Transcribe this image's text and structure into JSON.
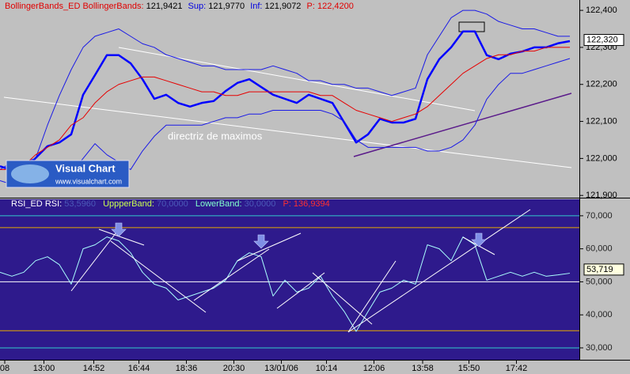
{
  "chart_data": [
    {
      "type": "line",
      "header": [
        "BollingerBands_ED",
        "BollingerBands:",
        "121,9421",
        "Sup:",
        "121,9770",
        "Inf:",
        "121,9072",
        "P:",
        "122,4200"
      ],
      "annotation": "directriz de maximos",
      "logo": [
        "Visual Chart",
        "www.visualchart.com"
      ],
      "xlim": [
        0,
        48.8
      ],
      "ylim": [
        121.894,
        122.428
      ],
      "yticks": [
        {
          "value": 121.9,
          "label": "121,900"
        },
        {
          "value": 122.0,
          "label": "122,000"
        },
        {
          "value": 122.1,
          "label": "122,100"
        },
        {
          "value": 122.2,
          "label": "122,200"
        },
        {
          "value": 122.3,
          "label": "122,300"
        },
        {
          "value": 122.4,
          "label": "122,400"
        }
      ],
      "last_value": 122.32,
      "last_label": "122,320",
      "series": [
        {
          "color": "#0000ff",
          "values": [
            121.979,
            121.968,
            121.968,
            122.001,
            122.033,
            122.043,
            122.065,
            122.172,
            122.225,
            122.279,
            122.279,
            122.257,
            122.214,
            122.161,
            122.172,
            122.15,
            122.14,
            122.15,
            122.155,
            122.182,
            122.204,
            122.214,
            122.193,
            122.172,
            122.161,
            122.15,
            122.172,
            122.161,
            122.15,
            122.097,
            122.043,
            122.065,
            122.107,
            122.097,
            122.097,
            122.107,
            122.214,
            122.268,
            122.3,
            122.343,
            122.343,
            122.279,
            122.268,
            122.283,
            122.289,
            122.3,
            122.3,
            122.311,
            122.317
          ]
        },
        {
          "color": "#1a1ae6",
          "values": [
            121.97,
            121.99,
            121.99,
            122.0,
            122.09,
            122.17,
            122.24,
            122.3,
            122.33,
            122.34,
            122.35,
            122.33,
            122.31,
            122.3,
            122.28,
            122.27,
            122.26,
            122.25,
            122.25,
            122.24,
            122.24,
            122.24,
            122.24,
            122.25,
            122.24,
            122.23,
            122.21,
            122.21,
            122.2,
            122.2,
            122.19,
            122.19,
            122.18,
            122.17,
            122.18,
            122.19,
            122.28,
            122.33,
            122.38,
            122.4,
            122.4,
            122.39,
            122.37,
            122.36,
            122.35,
            122.35,
            122.34,
            122.33,
            122.33
          ]
        },
        {
          "color": "#1a1ae6",
          "values": [
            121.94,
            121.93,
            121.93,
            121.94,
            121.94,
            121.95,
            121.96,
            122.0,
            122.04,
            122.01,
            121.99,
            121.97,
            122.02,
            122.06,
            122.09,
            122.09,
            122.09,
            122.09,
            122.1,
            122.11,
            122.11,
            122.12,
            122.12,
            122.13,
            122.13,
            122.13,
            122.13,
            122.13,
            122.12,
            122.1,
            122.05,
            122.03,
            122.03,
            122.03,
            122.03,
            122.03,
            122.02,
            122.02,
            122.03,
            122.05,
            122.09,
            122.16,
            122.2,
            122.23,
            122.23,
            122.24,
            122.25,
            122.26,
            122.27
          ]
        },
        {
          "color": "#e60000",
          "values": [
            121.97,
            121.97,
            121.98,
            122.01,
            122.03,
            122.05,
            122.09,
            122.11,
            122.15,
            122.18,
            122.2,
            122.21,
            122.22,
            122.22,
            122.21,
            122.2,
            122.19,
            122.18,
            122.18,
            122.17,
            122.17,
            122.18,
            122.18,
            122.18,
            122.18,
            122.18,
            122.18,
            122.17,
            122.17,
            122.15,
            122.13,
            122.12,
            122.11,
            122.1,
            122.11,
            122.12,
            122.14,
            122.17,
            122.2,
            122.23,
            122.25,
            122.27,
            122.28,
            122.28,
            122.29,
            122.29,
            122.3,
            122.3,
            122.3
          ]
        }
      ]
    },
    {
      "type": "line",
      "header": [
        "RSI_ED",
        "RSI:",
        "53,5960",
        "UppperBand:",
        "70,0000",
        "LowerBand:",
        "30,0000",
        "P:",
        "136,9394"
      ],
      "xlim": [
        0,
        48.8
      ],
      "ylim": [
        26.4,
        75
      ],
      "yticks": [
        {
          "value": 30,
          "label": "30,000"
        },
        {
          "value": 40,
          "label": "40,000"
        },
        {
          "value": 50,
          "label": "50,000"
        },
        {
          "value": 60,
          "label": "60,000"
        },
        {
          "value": 70,
          "label": "70,000"
        }
      ],
      "xticks": [
        {
          "value": 0.4,
          "label": "08"
        },
        {
          "value": 3.7,
          "label": "13:00"
        },
        {
          "value": 7.9,
          "label": "14:52"
        },
        {
          "value": 11.7,
          "label": "16:44"
        },
        {
          "value": 15.7,
          "label": "18:36"
        },
        {
          "value": 19.7,
          "label": "20:30"
        },
        {
          "value": 23.7,
          "label": "13/01/06"
        },
        {
          "value": 27.5,
          "label": "10:14"
        },
        {
          "value": 31.5,
          "label": "12:06"
        },
        {
          "value": 35.6,
          "label": "13:58"
        },
        {
          "value": 39.5,
          "label": "15:50"
        },
        {
          "value": 43.5,
          "label": "17:42"
        }
      ],
      "levels": [
        {
          "value": 70,
          "color": "#33cccc"
        },
        {
          "value": 66.4,
          "color": "#e6a800"
        },
        {
          "value": 50,
          "color": "#ffffff"
        },
        {
          "value": 35.2,
          "color": "#e6a800"
        },
        {
          "value": 30,
          "color": "#33cccc"
        }
      ],
      "last_value": 53.719,
      "last_label": "53,719",
      "series": [
        {
          "color": "#aaffff",
          "values": [
            52.9,
            51.7,
            52.9,
            56.4,
            57.6,
            55.2,
            49.3,
            60.0,
            61.2,
            63.6,
            62.4,
            58.8,
            52.9,
            49.3,
            48.1,
            44.5,
            45.7,
            46.9,
            48.1,
            50.5,
            56.4,
            58.8,
            57.6,
            45.7,
            50.5,
            46.9,
            48.1,
            51.7,
            45.7,
            41.0,
            35.0,
            41.0,
            46.9,
            48.1,
            50.5,
            49.3,
            61.2,
            60.0,
            56.4,
            63.6,
            61.2,
            50.5,
            51.7,
            52.9,
            51.7,
            52.9,
            51.7,
            52.1,
            52.6
          ]
        }
      ]
    }
  ]
}
